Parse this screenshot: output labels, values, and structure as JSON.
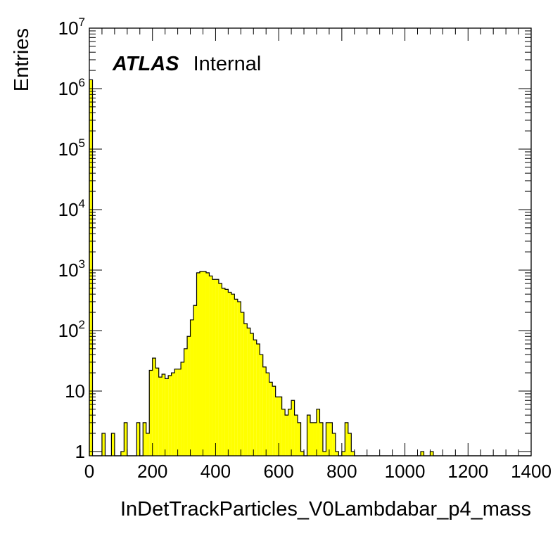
{
  "chart_data": {
    "type": "bar",
    "histogram": true,
    "xlabel": "InDetTrackParticles_V0Lambdabar_p4_mass",
    "ylabel": "Entries",
    "title_bold": "ATLAS",
    "title_normal": "Internal",
    "xlim": [
      0,
      1400
    ],
    "ylim": [
      0.85,
      10000000
    ],
    "log_y": true,
    "bin_width": 10,
    "fill_color": "#ffff00",
    "x_ticks": [
      "0",
      "200",
      "400",
      "600",
      "800",
      "1000",
      "1200",
      "1400"
    ],
    "y_ticks": [
      {
        "value": 1,
        "base": "1",
        "exp": ""
      },
      {
        "value": 10,
        "base": "10",
        "exp": ""
      },
      {
        "value": 100,
        "base": "10",
        "exp": "2"
      },
      {
        "value": 1000,
        "base": "10",
        "exp": "3"
      },
      {
        "value": 10000,
        "base": "10",
        "exp": "4"
      },
      {
        "value": 100000,
        "base": "10",
        "exp": "5"
      },
      {
        "value": 1000000,
        "base": "10",
        "exp": "6"
      },
      {
        "value": 10000000,
        "base": "10",
        "exp": "7"
      }
    ],
    "values": [
      1400000,
      0,
      0,
      0,
      2,
      0,
      0,
      2,
      0,
      0,
      1,
      3,
      0,
      0,
      0,
      3,
      0,
      3,
      2,
      22,
      35,
      24,
      17,
      19,
      16,
      18,
      20,
      23,
      23,
      30,
      50,
      80,
      150,
      260,
      900,
      950,
      950,
      900,
      800,
      700,
      700,
      600,
      500,
      480,
      430,
      400,
      330,
      300,
      200,
      130,
      110,
      90,
      70,
      60,
      40,
      25,
      20,
      14,
      12,
      8,
      8,
      5,
      4,
      5,
      7,
      4,
      3,
      1,
      0,
      4,
      3,
      3,
      5,
      3,
      1,
      3,
      3,
      2,
      1,
      0,
      1,
      3,
      2,
      1,
      0,
      0,
      0,
      0,
      0,
      0,
      0,
      0,
      0,
      0,
      0,
      0,
      0,
      0,
      0,
      0,
      0,
      0,
      0,
      0,
      0,
      0,
      0,
      0,
      0,
      0,
      0,
      0,
      0,
      0,
      0,
      0,
      0,
      0,
      0,
      0,
      0,
      0,
      0,
      0,
      0,
      0,
      0,
      0,
      0,
      0,
      0,
      0,
      0,
      0,
      0,
      0,
      0,
      0,
      0,
      0
    ],
    "extra_bins": [
      {
        "x": 1050,
        "value": 1
      },
      {
        "x": 1080,
        "value": 1
      }
    ]
  }
}
